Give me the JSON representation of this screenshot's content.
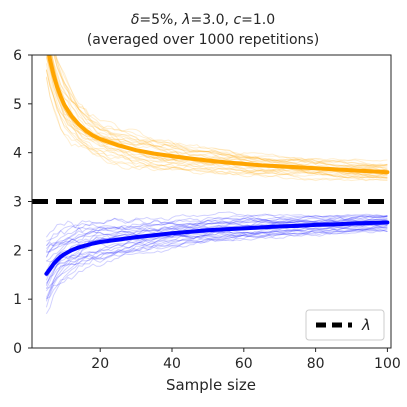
{
  "chart_data": {
    "type": "line",
    "title_line1_parts": [
      "δ",
      "=5%, ",
      "λ",
      "=3.0, ",
      "c",
      "=1.0"
    ],
    "title_line2": "(averaged over 1000 repetitions)",
    "xlabel": "Sample size",
    "ylabel": "",
    "xlim": [
      1,
      101
    ],
    "ylim": [
      0,
      6
    ],
    "xticks": [
      20,
      40,
      60,
      80,
      100
    ],
    "yticks": [
      0,
      1,
      2,
      3,
      4,
      5,
      6
    ],
    "grid": false,
    "legend": {
      "position": "bottom-right",
      "entries": [
        {
          "label": "λ",
          "style": "dashed",
          "color": "#000000"
        }
      ]
    },
    "reference_line": {
      "y": 3.0,
      "color": "#000000",
      "style": "dashed"
    },
    "series": [
      {
        "color": "#ffa500",
        "x": [
          5,
          6,
          7,
          8,
          9,
          10,
          12,
          14,
          16,
          18,
          20,
          25,
          30,
          35,
          40,
          45,
          50,
          55,
          60,
          65,
          70,
          75,
          80,
          85,
          90,
          95,
          100
        ],
        "values": [
          6.3,
          5.9,
          5.6,
          5.35,
          5.15,
          4.98,
          4.75,
          4.58,
          4.45,
          4.35,
          4.28,
          4.15,
          4.05,
          3.98,
          3.93,
          3.88,
          3.84,
          3.8,
          3.77,
          3.74,
          3.72,
          3.7,
          3.68,
          3.66,
          3.64,
          3.62,
          3.6
        ]
      },
      {
        "color": "#0000ff",
        "x": [
          5,
          6,
          7,
          8,
          9,
          10,
          12,
          14,
          16,
          18,
          20,
          25,
          30,
          35,
          40,
          45,
          50,
          55,
          60,
          65,
          70,
          75,
          80,
          85,
          90,
          95,
          100
        ],
        "values": [
          1.52,
          1.62,
          1.72,
          1.8,
          1.87,
          1.92,
          2.0,
          2.06,
          2.1,
          2.14,
          2.17,
          2.22,
          2.27,
          2.31,
          2.35,
          2.38,
          2.41,
          2.43,
          2.45,
          2.47,
          2.49,
          2.5,
          2.52,
          2.53,
          2.55,
          2.56,
          2.57
        ]
      }
    ]
  }
}
